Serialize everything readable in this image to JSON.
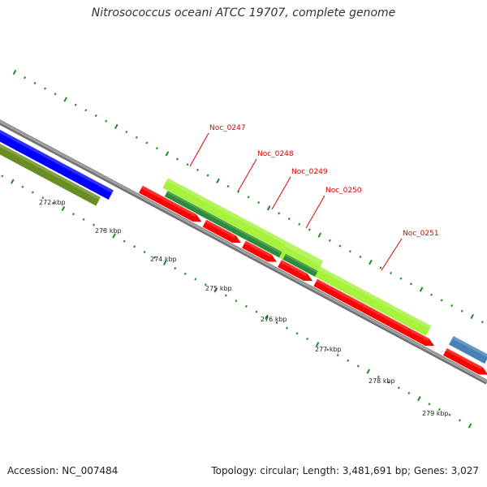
{
  "title": "Nitrosococcus oceani ATCC 19707, complete genome",
  "footer": {
    "accession": "Accession: NC_007484",
    "topology": "Topology: circular; Length: 3,481,691 bp; Genes: 3,027"
  },
  "axis_labels": [
    {
      "kb": 272,
      "text": "272 kbp"
    },
    {
      "kb": 273,
      "text": "273 kbp"
    },
    {
      "kb": 274,
      "text": "274 kbp"
    },
    {
      "kb": 275,
      "text": "275 kbp"
    },
    {
      "kb": 276,
      "text": "276 kbp"
    },
    {
      "kb": 277,
      "text": "277 kbp"
    },
    {
      "kb": 278,
      "text": "278 kbp"
    },
    {
      "kb": 279,
      "text": "279 kbp"
    }
  ],
  "gene_labels": [
    {
      "name": "Noc_0247",
      "text": "Noc_0247"
    },
    {
      "name": "Noc_0248",
      "text": "Noc_0248"
    },
    {
      "name": "Noc_0249",
      "text": "Noc_0249"
    },
    {
      "name": "Noc_0250",
      "text": "Noc_0250"
    },
    {
      "name": "Noc_0251",
      "text": "Noc_0251"
    }
  ],
  "colors": {
    "backbone": "#8c8c8c",
    "cds": "#ff0000",
    "blue_feature": "#0000ff",
    "olive_feature": "#6b8e23",
    "light_green": "#a6f23c",
    "dark_green": "#2e8b3a",
    "steel_blue": "#4682b4",
    "tick": "#1e8c1e",
    "label": "#dd0000"
  }
}
